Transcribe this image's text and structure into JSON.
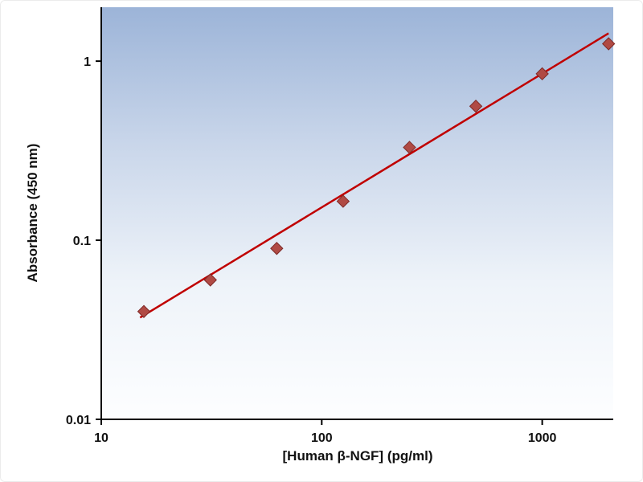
{
  "figure": {
    "background": "#ffffff"
  },
  "chart_data": {
    "type": "scatter",
    "title": "",
    "xlabel": "[Human β-NGF] (pg/ml)",
    "ylabel": "Absorbance (450 nm)",
    "x_scale": "log",
    "y_scale": "log",
    "x": [
      15.6,
      31.25,
      62.5,
      125,
      250,
      500,
      1000,
      2000
    ],
    "y": [
      0.04,
      0.06,
      0.09,
      0.165,
      0.33,
      0.56,
      0.85,
      1.25
    ],
    "trendline": {
      "x": [
        15,
        2000
      ],
      "y": [
        0.037,
        1.43
      ]
    },
    "xlim": [
      10,
      2100
    ],
    "ylim": [
      0.01,
      2.0
    ],
    "x_ticks": [
      10,
      100,
      1000
    ],
    "x_tick_labels": [
      "10",
      "100",
      "1000"
    ],
    "y_ticks": [
      0.01,
      0.1,
      1
    ],
    "y_tick_labels": [
      "0.01",
      "0.1",
      "1"
    ],
    "grid": false,
    "legend": false,
    "marker": "diamond",
    "marker_color": "#b04a44",
    "marker_edge_color": "#7e2a27",
    "line_color": "#c00000",
    "axis_color": "#000000",
    "tick_label_color": "#111111",
    "plot_bg_gradient": [
      "#9cb4d8",
      "#c9d6ea",
      "#eef3f9",
      "#fdfeff"
    ]
  }
}
